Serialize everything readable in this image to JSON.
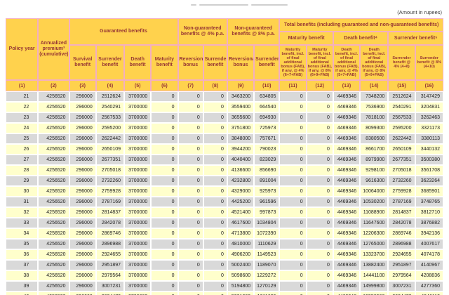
{
  "page": {
    "amount_note": "(Amount in rupees)"
  },
  "colors": {
    "header_bg": "#FFD24D",
    "header_text": "#963634",
    "row_gray": "#D9D9D9",
    "row_yellow": "#FFFFCC",
    "header_border": "#F4AFC0"
  },
  "table": {
    "groups": {
      "policy_year": "Policy year",
      "premium": "Annualized premium³ (cumulative)",
      "guaranteed": "Guaranteed benefits",
      "non_guaranteed_4": "Non-guaranteed benefits @ 4% p.a.",
      "non_guaranteed_8": "Non-guaranteed benefits @ 8% p.a.",
      "total": "Total benefits (including guaranteed and non-guaranteed benefits)",
      "total_maturity": "Maturity benefit",
      "total_death": "Death benefit⁴",
      "total_surrender": "Surrender benefit⁵"
    },
    "columns": {
      "survival": "Survival benefit",
      "surrender_guaranteed": "Surrender benefit",
      "death_guaranteed": "Death benefit",
      "maturity_guaranteed": "Maturity benefit",
      "reversionary_bonus_4": "Reversionary bonus",
      "surrender_benefit_4": "Surrender benefit",
      "reversionary_bonus_8": "Reversionary bonus",
      "surrender_benefit_8": "Surrender benefit",
      "maturity_fab_4": "Maturity benefit, incl. of final additional bonus (FAB), if any, @ 4% (6+7+FAB)",
      "maturity_fab_8": "Maturity benefit, incl. of final additional bonus (FAB), if any, @ 8% (6+9+FAB)",
      "death_fab_4": "Death benefit, incl. of final additional bonus (FAB), if any, @ 4% (5+7+FAB)",
      "death_fab_8": "Death benefit, incl. of final additional bonus (FAB), if any, @ 8% (5+9+FAB)",
      "surrender_total_4": "Surrender benefit @ 4% (4+8)",
      "surrender_total_8": "Surrender benefit @ 8% (4+10)"
    },
    "col_numbers": [
      "(1)",
      "(2)",
      "(3)",
      "(4)",
      "(5)",
      "(6)",
      "(7)",
      "(8)",
      "(9)",
      "(10)",
      "(11)",
      "(12)",
      "(13)",
      "(14)",
      "(15)",
      "(16)"
    ],
    "rows": [
      [
        21,
        4256520,
        296000,
        2512624,
        3700000,
        0,
        0,
        0,
        3463200,
        634805,
        0,
        0,
        4469346,
        7348200,
        2512624,
        3147429
      ],
      [
        22,
        4256520,
        296000,
        2540291,
        3700000,
        0,
        0,
        0,
        3559400,
        664540,
        0,
        0,
        4469346,
        7536900,
        2540291,
        3204831
      ],
      [
        23,
        4256520,
        296000,
        2567533,
        3700000,
        0,
        0,
        0,
        3655600,
        694930,
        0,
        0,
        4469346,
        7818100,
        2567533,
        3262463
      ],
      [
        24,
        4256520,
        296000,
        2595200,
        3700000,
        0,
        0,
        0,
        3751800,
        725973,
        0,
        0,
        4469346,
        8099300,
        2595200,
        3321173
      ],
      [
        25,
        4256520,
        296000,
        2622442,
        3700000,
        0,
        0,
        0,
        3848000,
        757671,
        0,
        0,
        4469346,
        8380500,
        2622442,
        3380113
      ],
      [
        26,
        4256520,
        296000,
        2650109,
        3700000,
        0,
        0,
        0,
        3944200,
        790023,
        0,
        0,
        4469346,
        8661700,
        2650109,
        3440132
      ],
      [
        27,
        4256520,
        296000,
        2677351,
        3700000,
        0,
        0,
        0,
        4040400,
        823029,
        0,
        0,
        4469346,
        8979900,
        2677351,
        3500380
      ],
      [
        28,
        4256520,
        296000,
        2705018,
        3700000,
        0,
        0,
        0,
        4136600,
        856690,
        0,
        0,
        4469346,
        9298100,
        2705018,
        3561708
      ],
      [
        29,
        4256520,
        296000,
        2732260,
        3700000,
        0,
        0,
        0,
        4232800,
        891004,
        0,
        0,
        4469346,
        9616300,
        2732260,
        3623264
      ],
      [
        30,
        4256520,
        296000,
        2759928,
        3700000,
        0,
        0,
        0,
        4329000,
        925973,
        0,
        0,
        4469346,
        10064000,
        2759928,
        3685901
      ],
      [
        31,
        4256520,
        296000,
        2787169,
        3700000,
        0,
        0,
        0,
        4425200,
        961596,
        0,
        0,
        4469346,
        10530200,
        2787169,
        3748765
      ],
      [
        32,
        4256520,
        296000,
        2814837,
        3700000,
        0,
        0,
        0,
        4521400,
        997873,
        0,
        0,
        4469346,
        11088900,
        2814837,
        3812710
      ],
      [
        33,
        4256520,
        296000,
        2842078,
        3700000,
        0,
        0,
        0,
        4617600,
        1034804,
        0,
        0,
        4469346,
        11647600,
        2842078,
        3876882
      ],
      [
        34,
        4256520,
        296000,
        2869746,
        3700000,
        0,
        0,
        0,
        4713800,
        1072390,
        0,
        0,
        4469346,
        12206300,
        2869746,
        3942136
      ],
      [
        35,
        4256520,
        296000,
        2896988,
        3700000,
        0,
        0,
        0,
        4810000,
        1110629,
        0,
        0,
        4469346,
        12765000,
        2896988,
        4007617
      ],
      [
        36,
        4256520,
        296000,
        2924655,
        3700000,
        0,
        0,
        0,
        4906200,
        1149523,
        0,
        0,
        4469346,
        13323700,
        2924655,
        4074178
      ],
      [
        37,
        4256520,
        296000,
        2951897,
        3700000,
        0,
        0,
        0,
        5002400,
        1189070,
        0,
        0,
        4469346,
        13882400,
        2951897,
        4140967
      ],
      [
        38,
        4256520,
        296000,
        2979564,
        3700000,
        0,
        0,
        0,
        5098600,
        1229272,
        0,
        0,
        4469346,
        14441100,
        2979564,
        4208836
      ],
      [
        39,
        4256520,
        296000,
        3007231,
        3700000,
        0,
        0,
        0,
        5194800,
        1270129,
        0,
        0,
        4469346,
        14999800,
        3007231,
        4277360
      ],
      [
        40,
        4256520,
        296000,
        3034473,
        3700000,
        0,
        0,
        0,
        5291000,
        1311639,
        0,
        0,
        4469346,
        15558500,
        3034473,
        4346112
      ]
    ]
  }
}
